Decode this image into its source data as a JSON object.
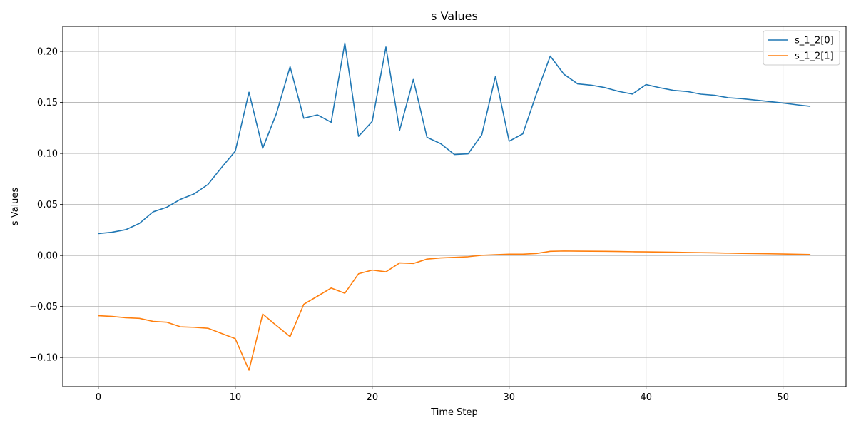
{
  "chart_data": {
    "type": "line",
    "title": "s Values",
    "xlabel": "Time Step",
    "ylabel": "s Values",
    "xlim": [
      -2.6,
      54.6
    ],
    "ylim": [
      -0.1285,
      0.2245
    ],
    "xticks": [
      0,
      10,
      20,
      30,
      40,
      50
    ],
    "yticks": [
      -0.1,
      -0.05,
      0.0,
      0.05,
      0.1,
      0.15,
      0.2
    ],
    "ytick_labels": [
      "−0.10",
      "−0.05",
      "0.00",
      "0.05",
      "0.10",
      "0.15",
      "0.20"
    ],
    "grid": true,
    "legend_position": "top-right",
    "x": [
      0,
      1,
      2,
      3,
      4,
      5,
      6,
      7,
      8,
      9,
      10,
      11,
      12,
      13,
      14,
      15,
      16,
      17,
      18,
      19,
      20,
      21,
      22,
      23,
      24,
      25,
      26,
      27,
      28,
      29,
      30,
      31,
      32,
      33,
      34,
      35,
      36,
      37,
      38,
      39,
      40,
      41,
      42,
      43,
      44,
      45,
      46,
      47,
      48,
      49,
      50,
      51,
      52
    ],
    "series": [
      {
        "name": "s_1_2[0]",
        "color": "#1f77b4",
        "values": [
          0.0215,
          0.0228,
          0.0253,
          0.0315,
          0.0428,
          0.0473,
          0.0551,
          0.0604,
          0.0696,
          0.0863,
          0.1023,
          0.16,
          0.105,
          0.139,
          0.185,
          0.1345,
          0.1378,
          0.1306,
          0.2082,
          0.1168,
          0.1314,
          0.2043,
          0.1228,
          0.1725,
          0.1158,
          0.1096,
          0.099,
          0.0997,
          0.1183,
          0.1755,
          0.112,
          0.1193,
          0.1588,
          0.1954,
          0.1776,
          0.1682,
          0.1669,
          0.1645,
          0.1608,
          0.1582,
          0.1675,
          0.1644,
          0.1618,
          0.1607,
          0.1581,
          0.157,
          0.1546,
          0.1537,
          0.1523,
          0.1509,
          0.1494,
          0.1477,
          0.1462
        ]
      },
      {
        "name": "s_1_2[1]",
        "color": "#ff7f0e",
        "values": [
          -0.059,
          -0.0597,
          -0.061,
          -0.0616,
          -0.0646,
          -0.0654,
          -0.0699,
          -0.0704,
          -0.0713,
          -0.0764,
          -0.0815,
          -0.1124,
          -0.0574,
          -0.0686,
          -0.0795,
          -0.0478,
          -0.0399,
          -0.0319,
          -0.037,
          -0.0179,
          -0.0143,
          -0.016,
          -0.0073,
          -0.0078,
          -0.0035,
          -0.0024,
          -0.0018,
          -0.0012,
          0.0002,
          0.0008,
          0.0013,
          0.0013,
          0.002,
          0.0041,
          0.0044,
          0.0043,
          0.0042,
          0.0041,
          0.0039,
          0.0037,
          0.0036,
          0.0034,
          0.0032,
          0.003,
          0.0028,
          0.0026,
          0.0023,
          0.0021,
          0.0019,
          0.0017,
          0.0015,
          0.0012,
          0.001
        ]
      }
    ]
  }
}
